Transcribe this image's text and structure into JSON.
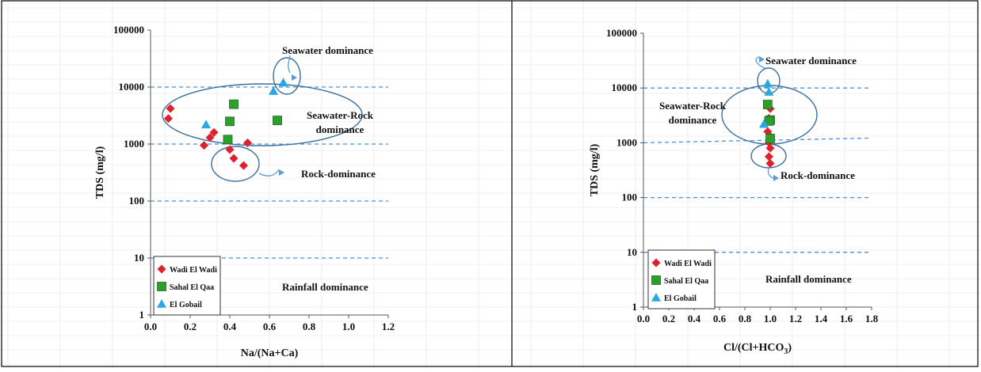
{
  "colors": {
    "wadi": "#e0202e",
    "sahal": "#2ca02c",
    "sahal_edge": "#1f6e1f",
    "gobail": "#29a9e0",
    "dashed": "#4a90d9",
    "ellipse": "#3b6f9e",
    "arrow": "#5b9bd5"
  },
  "chart_data": [
    {
      "type": "scatter",
      "xlabel": "Na/(Na+Ca)",
      "ylabel": "TDS (mg/l)",
      "xlim": [
        0.0,
        1.2
      ],
      "ylim": [
        1,
        100000
      ],
      "yscale": "log",
      "x_ticks": [
        "0.0",
        "0.2",
        "0.4",
        "0.6",
        "0.8",
        "1.0",
        "1.2"
      ],
      "y_ticks": [
        "1",
        "10",
        "100",
        "1000",
        "10000",
        "100000"
      ],
      "reference_lines": [
        10,
        100,
        1000,
        10000
      ],
      "legend_position": "bottom-left",
      "series": [
        {
          "name": "Wadi El Wadi",
          "marker": "diamond",
          "points": [
            [
              0.1,
              4200
            ],
            [
              0.09,
              2800
            ],
            [
              0.27,
              950
            ],
            [
              0.3,
              1300
            ],
            [
              0.32,
              1600
            ],
            [
              0.4,
              800
            ],
            [
              0.42,
              560
            ],
            [
              0.47,
              420
            ],
            [
              0.49,
              1050
            ]
          ]
        },
        {
          "name": "Sahal El Qaa",
          "marker": "square",
          "points": [
            [
              0.42,
              5000
            ],
            [
              0.4,
              2500
            ],
            [
              0.39,
              1200
            ],
            [
              0.64,
              2600
            ]
          ]
        },
        {
          "name": "El Gobail",
          "marker": "triangle",
          "points": [
            [
              0.28,
              2200
            ],
            [
              0.62,
              8500
            ],
            [
              0.67,
              12000
            ]
          ]
        }
      ],
      "annotations": {
        "seawater": "Seawater dominance",
        "seawater_rock_1": "Seawater-Rock",
        "seawater_rock_2": "dominance",
        "rock": "Rock-dominance",
        "rainfall": "Rainfall dominance"
      }
    },
    {
      "type": "scatter",
      "xlabel_main": "Cl/(Cl+HCO",
      "xlabel_sub": "3",
      "xlabel_end": ")",
      "ylabel": "TDS (mg/l)",
      "xlim": [
        0.0,
        1.8
      ],
      "ylim": [
        1,
        100000
      ],
      "yscale": "log",
      "x_ticks": [
        "0.0",
        "0.2",
        "0.4",
        "0.6",
        "0.8",
        "1.0",
        "1.2",
        "1.4",
        "1.6",
        "1.8"
      ],
      "y_ticks": [
        "1",
        "10",
        "100",
        "1000",
        "10000",
        "100000"
      ],
      "reference_lines": [
        10,
        100,
        10000
      ],
      "legend_position": "bottom-left",
      "series": [
        {
          "name": "Wadi El Wadi",
          "marker": "diamond",
          "points": [
            [
              1.0,
              4200
            ],
            [
              0.99,
              2800
            ],
            [
              0.98,
              1600
            ],
            [
              1.0,
              1300
            ],
            [
              0.99,
              1000
            ],
            [
              1.0,
              800
            ],
            [
              0.99,
              560
            ],
            [
              1.0,
              420
            ]
          ]
        },
        {
          "name": "Sahal El Qaa",
          "marker": "square",
          "points": [
            [
              0.98,
              5000
            ],
            [
              1.0,
              2600
            ],
            [
              0.99,
              2500
            ],
            [
              1.0,
              1200
            ]
          ]
        },
        {
          "name": "El Gobail",
          "marker": "triangle",
          "points": [
            [
              0.98,
              12000
            ],
            [
              0.99,
              8500
            ],
            [
              0.95,
              2200
            ]
          ]
        }
      ],
      "annotations": {
        "seawater": "Seawater dominance",
        "seawater_rock_1": "Seawater-Rock",
        "seawater_rock_2": "dominance",
        "rock": "Rock-dominance",
        "rainfall": "Rainfall dominance"
      }
    }
  ]
}
